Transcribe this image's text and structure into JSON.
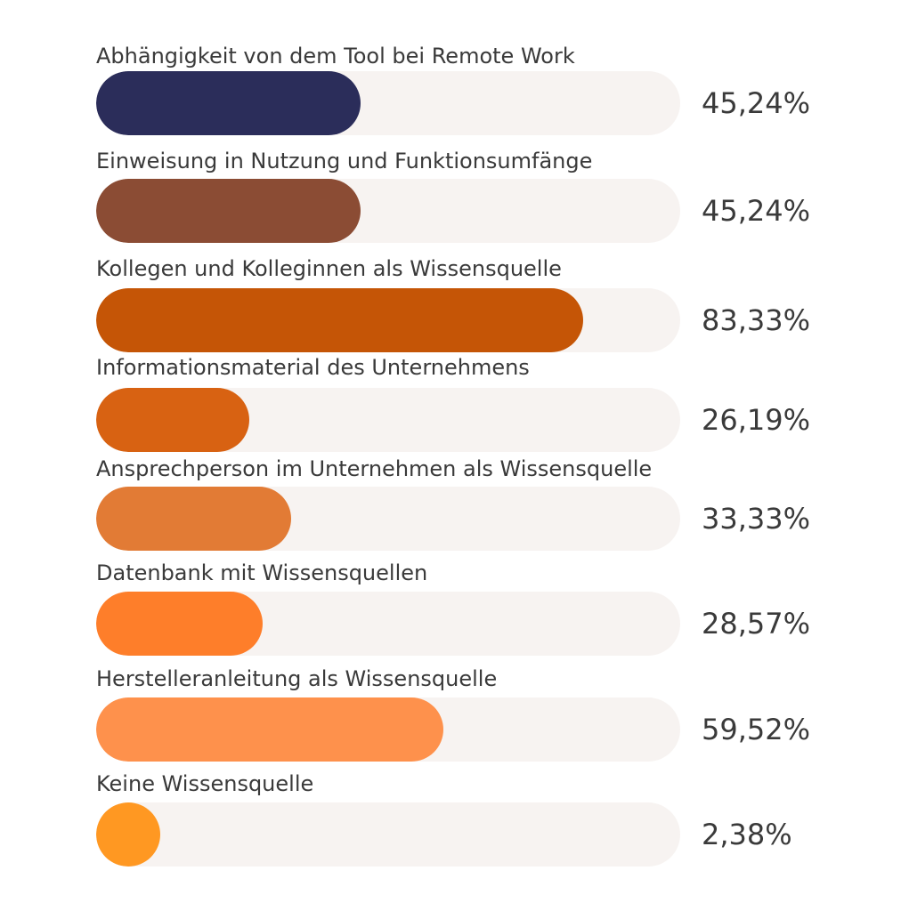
{
  "chart_data": {
    "type": "bar",
    "orientation": "horizontal",
    "xlim": [
      0,
      100
    ],
    "categories": [
      "Abhängigkeit von dem Tool bei Remote Work",
      "Einweisung in Nutzung und Funktionsumfänge",
      "Kollegen und Kolleginnen als Wissensquelle",
      "Informationsmaterial des Unternehmens",
      "Ansprechperson im Unternehmen als Wissensquelle",
      "Datenbank mit Wissensquellen",
      "Herstelleranleitung als Wissensquelle",
      "Keine Wissensquelle"
    ],
    "values": [
      45.24,
      45.24,
      83.33,
      26.19,
      33.33,
      28.57,
      59.52,
      2.38
    ],
    "value_labels": [
      "45,24%",
      "45,24%",
      "83,33%",
      "26,19%",
      "33,33%",
      "28,57%",
      "59,52%",
      "2,38%"
    ],
    "colors": [
      "#2b2d5a",
      "#8b4c34",
      "#c55506",
      "#d86212",
      "#e27b35",
      "#fe7e2a",
      "#fe914c",
      "#ff9822"
    ],
    "track_color": "#f7f3f1"
  }
}
